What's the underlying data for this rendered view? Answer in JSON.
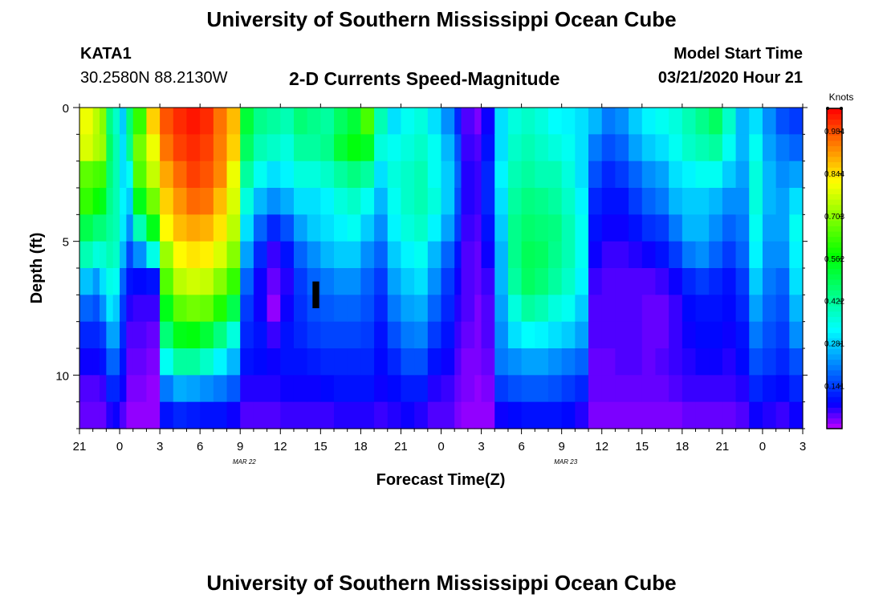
{
  "header": {
    "title": "University of Southern Mississippi Ocean Cube",
    "station_id": "KATA1",
    "coordinates": "30.2580N 88.2130W",
    "subtitle": "2-D Currents Speed-Magnitude",
    "model_label": "Model Start Time",
    "model_time": "03/21/2020 Hour 21"
  },
  "footer": {
    "title": "University of Southern Mississippi Ocean Cube"
  },
  "chart_data": {
    "type": "heatmap",
    "title": "2-D Currents Speed-Magnitude",
    "xlabel": "Forecast Time(Z)",
    "ylabel": "Depth (ft)",
    "x_ticks": [
      "21",
      "0",
      "3",
      "6",
      "9",
      "12",
      "15",
      "18",
      "21",
      "0",
      "3",
      "6",
      "9",
      "12",
      "15",
      "18",
      "21",
      "0",
      "3"
    ],
    "date_labels": [
      {
        "text": "MAR 22",
        "at_hour": 15
      },
      {
        "text": "MAR 23",
        "at_hour": 39
      }
    ],
    "y_ticks": [
      "0",
      "5",
      "10"
    ],
    "ylim": [
      0,
      12
    ],
    "x_range_hours": [
      0,
      54
    ],
    "colorbar": {
      "title": "Knots",
      "tick_labels": [
        "0.984",
        "0.844",
        "0.703",
        "0.562",
        "0.422",
        "0.281",
        "0.141"
      ],
      "tick_values": [
        0.984,
        0.844,
        0.703,
        0.562,
        0.422,
        0.281,
        0.141
      ],
      "range": [
        0.0,
        1.06
      ]
    },
    "depth_levels": 12,
    "columns": [
      {
        "h": 0.0,
        "d": [
          0.8,
          0.78,
          0.66,
          0.62,
          0.5,
          0.4,
          0.27,
          0.18,
          0.12,
          0.08,
          0.05,
          0.04
        ]
      },
      {
        "h": 1.0,
        "d": [
          0.75,
          0.74,
          0.64,
          0.58,
          0.46,
          0.36,
          0.23,
          0.16,
          0.12,
          0.08,
          0.05,
          0.04
        ]
      },
      {
        "h": 1.5,
        "d": [
          0.7,
          0.72,
          0.63,
          0.55,
          0.46,
          0.37,
          0.3,
          0.22,
          0.14,
          0.1,
          0.06,
          0.04
        ]
      },
      {
        "h": 2.0,
        "d": [
          0.45,
          0.48,
          0.46,
          0.44,
          0.42,
          0.4,
          0.35,
          0.31,
          0.24,
          0.18,
          0.12,
          0.07
        ]
      },
      {
        "h": 2.5,
        "d": [
          0.38,
          0.4,
          0.4,
          0.4,
          0.4,
          0.38,
          0.34,
          0.28,
          0.24,
          0.18,
          0.12,
          0.08
        ]
      },
      {
        "h": 3.0,
        "d": [
          0.28,
          0.3,
          0.3,
          0.32,
          0.31,
          0.26,
          0.18,
          0.14,
          0.12,
          0.1,
          0.08,
          0.05
        ]
      },
      {
        "h": 3.5,
        "d": [
          0.46,
          0.44,
          0.34,
          0.28,
          0.22,
          0.15,
          0.1,
          0.07,
          0.05,
          0.04,
          0.03,
          0.02
        ]
      },
      {
        "h": 4.0,
        "d": [
          0.62,
          0.68,
          0.65,
          0.55,
          0.4,
          0.22,
          0.09,
          0.06,
          0.05,
          0.04,
          0.03,
          0.02
        ]
      },
      {
        "h": 5.0,
        "d": [
          0.86,
          0.8,
          0.76,
          0.68,
          0.55,
          0.35,
          0.1,
          0.06,
          0.04,
          0.03,
          0.02,
          0.02
        ]
      },
      {
        "h": 6.0,
        "d": [
          0.98,
          0.95,
          0.9,
          0.86,
          0.82,
          0.72,
          0.65,
          0.55,
          0.46,
          0.34,
          0.2,
          0.1
        ]
      },
      {
        "h": 7.0,
        "d": [
          1.02,
          1.0,
          0.96,
          0.92,
          0.88,
          0.82,
          0.75,
          0.66,
          0.55,
          0.42,
          0.25,
          0.12
        ]
      },
      {
        "h": 8.0,
        "d": [
          1.04,
          1.02,
          1.0,
          0.96,
          0.9,
          0.84,
          0.77,
          0.68,
          0.56,
          0.42,
          0.24,
          0.11
        ]
      },
      {
        "h": 9.0,
        "d": [
          1.02,
          1.0,
          0.98,
          0.95,
          0.89,
          0.83,
          0.76,
          0.67,
          0.52,
          0.38,
          0.22,
          0.1
        ]
      },
      {
        "h": 10.0,
        "d": [
          0.95,
          0.94,
          0.93,
          0.88,
          0.84,
          0.78,
          0.7,
          0.6,
          0.45,
          0.32,
          0.2,
          0.1
        ]
      },
      {
        "h": 11.0,
        "d": [
          0.88,
          0.86,
          0.8,
          0.78,
          0.75,
          0.7,
          0.62,
          0.5,
          0.36,
          0.26,
          0.17,
          0.08
        ]
      },
      {
        "h": 12.0,
        "d": [
          0.52,
          0.48,
          0.42,
          0.36,
          0.3,
          0.24,
          0.18,
          0.14,
          0.12,
          0.1,
          0.07,
          0.05
        ]
      },
      {
        "h": 13.0,
        "d": [
          0.44,
          0.4,
          0.34,
          0.26,
          0.18,
          0.12,
          0.08,
          0.08,
          0.1,
          0.09,
          0.07,
          0.05
        ]
      },
      {
        "h": 14.0,
        "d": [
          0.42,
          0.38,
          0.3,
          0.22,
          0.12,
          0.06,
          0.04,
          0.02,
          0.06,
          0.08,
          0.07,
          0.05
        ]
      },
      {
        "h": 15.0,
        "d": [
          0.4,
          0.36,
          0.32,
          0.25,
          0.16,
          0.1,
          0.07,
          0.08,
          0.1,
          0.1,
          0.08,
          0.06
        ]
      },
      {
        "h": 16.0,
        "d": [
          0.46,
          0.42,
          0.36,
          0.3,
          0.24,
          0.18,
          0.14,
          0.13,
          0.12,
          0.1,
          0.08,
          0.06
        ]
      },
      {
        "h": 17.0,
        "d": [
          0.44,
          0.42,
          0.36,
          0.3,
          0.28,
          0.22,
          0.18,
          0.16,
          0.14,
          0.11,
          0.08,
          0.06
        ]
      },
      {
        "h": 18.0,
        "d": [
          0.42,
          0.44,
          0.38,
          0.32,
          0.3,
          0.26,
          0.2,
          0.17,
          0.15,
          0.12,
          0.09,
          0.06
        ]
      },
      {
        "h": 19.0,
        "d": [
          0.48,
          0.52,
          0.42,
          0.36,
          0.32,
          0.28,
          0.22,
          0.18,
          0.15,
          0.12,
          0.1,
          0.07
        ]
      },
      {
        "h": 20.0,
        "d": [
          0.52,
          0.56,
          0.45,
          0.38,
          0.34,
          0.28,
          0.22,
          0.18,
          0.15,
          0.12,
          0.1,
          0.07
        ]
      },
      {
        "h": 21.0,
        "d": [
          0.64,
          0.54,
          0.42,
          0.34,
          0.28,
          0.22,
          0.18,
          0.16,
          0.14,
          0.12,
          0.1,
          0.07
        ]
      },
      {
        "h": 22.0,
        "d": [
          0.4,
          0.36,
          0.3,
          0.26,
          0.22,
          0.18,
          0.14,
          0.12,
          0.1,
          0.09,
          0.08,
          0.06
        ]
      },
      {
        "h": 23.0,
        "d": [
          0.3,
          0.34,
          0.36,
          0.34,
          0.32,
          0.28,
          0.24,
          0.2,
          0.16,
          0.12,
          0.09,
          0.07
        ]
      },
      {
        "h": 24.0,
        "d": [
          0.34,
          0.36,
          0.38,
          0.38,
          0.36,
          0.32,
          0.28,
          0.24,
          0.2,
          0.16,
          0.11,
          0.08
        ]
      },
      {
        "h": 25.0,
        "d": [
          0.36,
          0.38,
          0.4,
          0.4,
          0.38,
          0.34,
          0.3,
          0.25,
          0.21,
          0.16,
          0.11,
          0.07
        ]
      },
      {
        "h": 26.0,
        "d": [
          0.3,
          0.34,
          0.34,
          0.36,
          0.32,
          0.26,
          0.22,
          0.18,
          0.14,
          0.1,
          0.07,
          0.05
        ]
      },
      {
        "h": 27.0,
        "d": [
          0.22,
          0.26,
          0.28,
          0.28,
          0.24,
          0.18,
          0.14,
          0.12,
          0.1,
          0.08,
          0.06,
          0.05
        ]
      },
      {
        "h": 28.0,
        "d": [
          0.12,
          0.16,
          0.18,
          0.16,
          0.14,
          0.1,
          0.08,
          0.07,
          0.06,
          0.05,
          0.04,
          0.03
        ]
      },
      {
        "h": 28.5,
        "d": [
          0.05,
          0.06,
          0.07,
          0.07,
          0.06,
          0.05,
          0.05,
          0.05,
          0.04,
          0.03,
          0.03,
          0.02
        ]
      },
      {
        "h": 29.5,
        "d": [
          0.03,
          0.05,
          0.06,
          0.06,
          0.05,
          0.04,
          0.04,
          0.03,
          0.03,
          0.03,
          0.02,
          0.02
        ]
      },
      {
        "h": 30.0,
        "d": [
          0.08,
          0.1,
          0.12,
          0.12,
          0.1,
          0.08,
          0.06,
          0.05,
          0.05,
          0.04,
          0.03,
          0.02
        ]
      },
      {
        "h": 31.0,
        "d": [
          0.3,
          0.3,
          0.32,
          0.3,
          0.28,
          0.26,
          0.26,
          0.24,
          0.22,
          0.2,
          0.14,
          0.08
        ]
      },
      {
        "h": 32.0,
        "d": [
          0.36,
          0.38,
          0.4,
          0.42,
          0.44,
          0.44,
          0.42,
          0.36,
          0.3,
          0.22,
          0.16,
          0.09
        ]
      },
      {
        "h": 33.0,
        "d": [
          0.38,
          0.4,
          0.42,
          0.45,
          0.47,
          0.49,
          0.48,
          0.42,
          0.33,
          0.24,
          0.17,
          0.1
        ]
      },
      {
        "h": 34.0,
        "d": [
          0.36,
          0.38,
          0.4,
          0.44,
          0.46,
          0.48,
          0.46,
          0.4,
          0.32,
          0.24,
          0.17,
          0.1
        ]
      },
      {
        "h": 35.0,
        "d": [
          0.33,
          0.36,
          0.4,
          0.42,
          0.45,
          0.44,
          0.42,
          0.36,
          0.3,
          0.22,
          0.16,
          0.1
        ]
      },
      {
        "h": 36.0,
        "d": [
          0.32,
          0.34,
          0.36,
          0.38,
          0.4,
          0.4,
          0.38,
          0.34,
          0.28,
          0.2,
          0.14,
          0.09
        ]
      },
      {
        "h": 37.0,
        "d": [
          0.3,
          0.3,
          0.3,
          0.32,
          0.34,
          0.34,
          0.32,
          0.28,
          0.24,
          0.18,
          0.12,
          0.07
        ]
      },
      {
        "h": 38.0,
        "d": [
          0.26,
          0.2,
          0.16,
          0.12,
          0.1,
          0.08,
          0.06,
          0.05,
          0.05,
          0.04,
          0.04,
          0.03
        ]
      },
      {
        "h": 39.0,
        "d": [
          0.2,
          0.16,
          0.12,
          0.1,
          0.08,
          0.06,
          0.05,
          0.05,
          0.05,
          0.04,
          0.04,
          0.03
        ]
      },
      {
        "h": 40.0,
        "d": [
          0.22,
          0.18,
          0.14,
          0.1,
          0.08,
          0.06,
          0.05,
          0.05,
          0.05,
          0.05,
          0.04,
          0.03
        ]
      },
      {
        "h": 41.0,
        "d": [
          0.28,
          0.24,
          0.18,
          0.14,
          0.1,
          0.07,
          0.05,
          0.05,
          0.05,
          0.05,
          0.04,
          0.03
        ]
      },
      {
        "h": 42.0,
        "d": [
          0.32,
          0.28,
          0.22,
          0.18,
          0.13,
          0.08,
          0.05,
          0.04,
          0.04,
          0.04,
          0.04,
          0.03
        ]
      },
      {
        "h": 43.0,
        "d": [
          0.34,
          0.3,
          0.24,
          0.2,
          0.14,
          0.1,
          0.06,
          0.04,
          0.04,
          0.05,
          0.04,
          0.03
        ]
      },
      {
        "h": 44.0,
        "d": [
          0.36,
          0.34,
          0.3,
          0.26,
          0.2,
          0.14,
          0.08,
          0.06,
          0.06,
          0.06,
          0.05,
          0.03
        ]
      },
      {
        "h": 45.0,
        "d": [
          0.4,
          0.38,
          0.32,
          0.28,
          0.26,
          0.2,
          0.12,
          0.09,
          0.08,
          0.07,
          0.06,
          0.04
        ]
      },
      {
        "h": 46.0,
        "d": [
          0.44,
          0.4,
          0.34,
          0.28,
          0.26,
          0.22,
          0.14,
          0.1,
          0.09,
          0.08,
          0.06,
          0.04
        ]
      },
      {
        "h": 47.0,
        "d": [
          0.48,
          0.42,
          0.34,
          0.26,
          0.22,
          0.18,
          0.12,
          0.1,
          0.09,
          0.08,
          0.06,
          0.04
        ]
      },
      {
        "h": 48.0,
        "d": [
          0.38,
          0.34,
          0.28,
          0.22,
          0.18,
          0.14,
          0.1,
          0.09,
          0.08,
          0.07,
          0.06,
          0.04
        ]
      },
      {
        "h": 49.0,
        "d": [
          0.26,
          0.26,
          0.24,
          0.22,
          0.2,
          0.18,
          0.14,
          0.12,
          0.1,
          0.09,
          0.07,
          0.05
        ]
      },
      {
        "h": 50.0,
        "d": [
          0.3,
          0.34,
          0.36,
          0.36,
          0.34,
          0.32,
          0.28,
          0.24,
          0.2,
          0.16,
          0.12,
          0.08
        ]
      },
      {
        "h": 51.0,
        "d": [
          0.22,
          0.24,
          0.26,
          0.26,
          0.24,
          0.22,
          0.2,
          0.18,
          0.16,
          0.14,
          0.1,
          0.07
        ]
      },
      {
        "h": 52.0,
        "d": [
          0.16,
          0.2,
          0.22,
          0.24,
          0.24,
          0.22,
          0.18,
          0.16,
          0.14,
          0.12,
          0.09,
          0.06
        ]
      },
      {
        "h": 53.0,
        "d": [
          0.14,
          0.18,
          0.24,
          0.3,
          0.34,
          0.32,
          0.3,
          0.26,
          0.22,
          0.16,
          0.12,
          0.08
        ]
      }
    ],
    "overlays": [
      {
        "label": "missing-data",
        "hour_start": 17.4,
        "hour_end": 17.9,
        "depth_start": 6.5,
        "depth_end": 7.5
      }
    ]
  }
}
